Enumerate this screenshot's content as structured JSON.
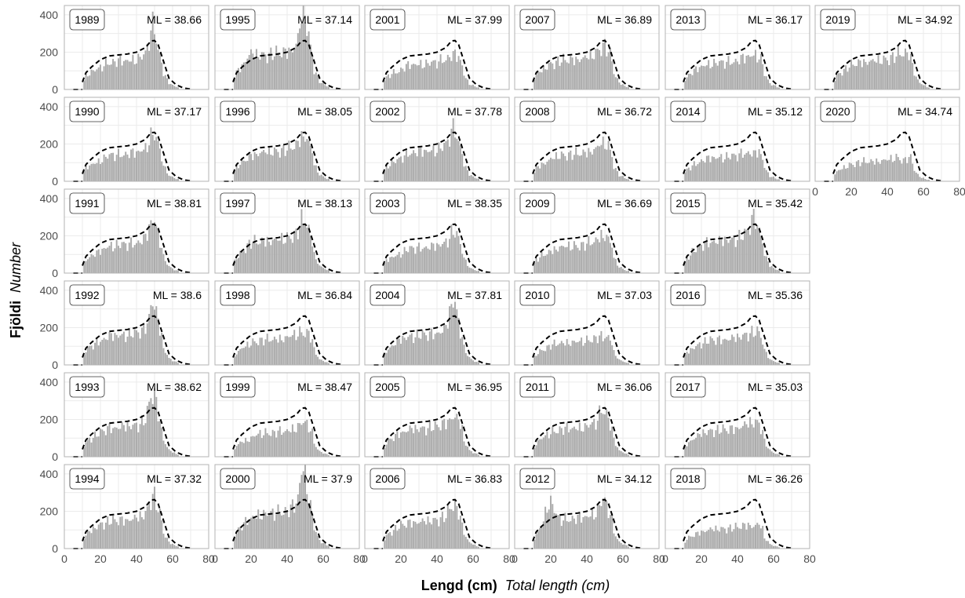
{
  "chart_data": {
    "type": "bar",
    "facet_layout": "6x6 grid, columns filled top-to-bottom",
    "xlabel_bold": "Lengd (cm)",
    "xlabel_italic": "Total length (cm)",
    "ylabel_bold": "Fjöldi",
    "ylabel_italic": "Number",
    "xlim": [
      0,
      80
    ],
    "ylim": [
      0,
      450
    ],
    "x_ticks": [
      0,
      20,
      40,
      60,
      80
    ],
    "y_ticks": [
      0,
      200,
      400
    ],
    "grid": true,
    "colors": {
      "bars": "#aaaaaa",
      "reference": "#000000",
      "grid": "#ebebeb"
    },
    "reference_curve": {
      "style": "dashed",
      "points": [
        [
          10,
          40
        ],
        [
          12,
          90
        ],
        [
          15,
          120
        ],
        [
          20,
          160
        ],
        [
          25,
          180
        ],
        [
          30,
          185
        ],
        [
          35,
          190
        ],
        [
          40,
          200
        ],
        [
          45,
          225
        ],
        [
          48,
          260
        ],
        [
          50,
          262
        ],
        [
          52,
          240
        ],
        [
          55,
          150
        ],
        [
          58,
          60
        ],
        [
          62,
          25
        ],
        [
          66,
          8
        ],
        [
          70,
          2
        ]
      ]
    },
    "panels": [
      {
        "year": "1989",
        "ml_label": "ML = 38.66",
        "shape": {
          "scale": 1.0,
          "peak": 1.6,
          "left": 0.9,
          "right": 1.0
        },
        "show_x_axis": false
      },
      {
        "year": "1990",
        "ml_label": "ML = 37.17",
        "shape": {
          "scale": 0.95,
          "peak": 1.25,
          "left": 0.9,
          "right": 1.0
        },
        "show_x_axis": false
      },
      {
        "year": "1991",
        "ml_label": "ML = 38.81",
        "shape": {
          "scale": 1.0,
          "peak": 1.35,
          "left": 0.9,
          "right": 1.0
        },
        "show_x_axis": false
      },
      {
        "year": "1992",
        "ml_label": "ML = 38.6",
        "shape": {
          "scale": 1.05,
          "peak": 1.5,
          "left": 0.95,
          "right": 1.0
        },
        "show_x_axis": false
      },
      {
        "year": "1993",
        "ml_label": "ML = 38.62",
        "shape": {
          "scale": 1.05,
          "peak": 1.55,
          "left": 0.95,
          "right": 1.0
        },
        "show_x_axis": false
      },
      {
        "year": "1994",
        "ml_label": "ML = 37.32",
        "shape": {
          "scale": 1.0,
          "peak": 1.35,
          "left": 1.0,
          "right": 1.0
        },
        "show_x_axis": true
      },
      {
        "year": "1995",
        "ml_label": "ML = 37.14",
        "shape": {
          "scale": 1.25,
          "peak": 1.55,
          "left": 1.2,
          "right": 1.0
        },
        "show_x_axis": false
      },
      {
        "year": "1996",
        "ml_label": "ML = 38.05",
        "shape": {
          "scale": 1.05,
          "peak": 1.1,
          "left": 1.0,
          "right": 1.0
        },
        "show_x_axis": false
      },
      {
        "year": "1997",
        "ml_label": "ML = 38.13",
        "shape": {
          "scale": 1.15,
          "peak": 1.15,
          "left": 1.1,
          "right": 1.0
        },
        "show_x_axis": false
      },
      {
        "year": "1998",
        "ml_label": "ML = 36.84",
        "shape": {
          "scale": 0.9,
          "peak": 0.9,
          "left": 1.0,
          "right": 1.0
        },
        "show_x_axis": false
      },
      {
        "year": "1999",
        "ml_label": "ML = 38.47",
        "shape": {
          "scale": 0.85,
          "peak": 1.0,
          "left": 0.9,
          "right": 1.0
        },
        "show_x_axis": false
      },
      {
        "year": "2000",
        "ml_label": "ML = 37.9",
        "shape": {
          "scale": 1.25,
          "peak": 1.65,
          "left": 1.0,
          "right": 1.0
        },
        "show_x_axis": true
      },
      {
        "year": "2001",
        "ml_label": "ML = 37.99",
        "shape": {
          "scale": 0.9,
          "peak": 0.95,
          "left": 0.9,
          "right": 1.0
        },
        "show_x_axis": false
      },
      {
        "year": "2002",
        "ml_label": "ML = 37.78",
        "shape": {
          "scale": 1.05,
          "peak": 1.25,
          "left": 0.9,
          "right": 1.0
        },
        "show_x_axis": false
      },
      {
        "year": "2003",
        "ml_label": "ML = 38.35",
        "shape": {
          "scale": 0.9,
          "peak": 1.15,
          "left": 0.9,
          "right": 1.0
        },
        "show_x_axis": false
      },
      {
        "year": "2004",
        "ml_label": "ML = 37.81",
        "shape": {
          "scale": 1.05,
          "peak": 1.55,
          "left": 1.0,
          "right": 1.0
        },
        "show_x_axis": false
      },
      {
        "year": "2005",
        "ml_label": "ML = 36.95",
        "shape": {
          "scale": 1.0,
          "peak": 1.0,
          "left": 1.0,
          "right": 1.0
        },
        "show_x_axis": false
      },
      {
        "year": "2006",
        "ml_label": "ML = 36.83",
        "shape": {
          "scale": 0.95,
          "peak": 1.15,
          "left": 1.0,
          "right": 1.0
        },
        "show_x_axis": true
      },
      {
        "year": "2007",
        "ml_label": "ML = 36.89",
        "shape": {
          "scale": 1.05,
          "peak": 1.05,
          "left": 1.0,
          "right": 1.0
        },
        "show_x_axis": false
      },
      {
        "year": "2008",
        "ml_label": "ML = 36.72",
        "shape": {
          "scale": 0.95,
          "peak": 1.0,
          "left": 0.95,
          "right": 1.0
        },
        "show_x_axis": false
      },
      {
        "year": "2009",
        "ml_label": "ML = 36.69",
        "shape": {
          "scale": 0.95,
          "peak": 1.0,
          "left": 0.95,
          "right": 1.0
        },
        "show_x_axis": false
      },
      {
        "year": "2010",
        "ml_label": "ML = 37.03",
        "shape": {
          "scale": 0.8,
          "peak": 0.85,
          "left": 1.0,
          "right": 1.0
        },
        "show_x_axis": false
      },
      {
        "year": "2011",
        "ml_label": "ML = 36.06",
        "shape": {
          "scale": 1.0,
          "peak": 1.2,
          "left": 1.0,
          "right": 1.0
        },
        "show_x_axis": false
      },
      {
        "year": "2012",
        "ml_label": "ML = 34.12",
        "shape": {
          "scale": 1.05,
          "peak": 1.15,
          "left": 1.9,
          "right": 1.0
        },
        "show_x_axis": true
      },
      {
        "year": "2013",
        "ml_label": "ML = 36.17",
        "shape": {
          "scale": 0.95,
          "peak": 0.9,
          "left": 1.0,
          "right": 1.0
        },
        "show_x_axis": false
      },
      {
        "year": "2014",
        "ml_label": "ML = 35.12",
        "shape": {
          "scale": 0.85,
          "peak": 0.8,
          "left": 1.0,
          "right": 1.0
        },
        "show_x_axis": false
      },
      {
        "year": "2015",
        "ml_label": "ML = 35.42",
        "shape": {
          "scale": 1.15,
          "peak": 1.2,
          "left": 1.0,
          "right": 1.0
        },
        "show_x_axis": false
      },
      {
        "year": "2016",
        "ml_label": "ML = 35.36",
        "shape": {
          "scale": 0.9,
          "peak": 0.9,
          "left": 1.0,
          "right": 1.0
        },
        "show_x_axis": false
      },
      {
        "year": "2017",
        "ml_label": "ML = 35.03",
        "shape": {
          "scale": 0.95,
          "peak": 0.9,
          "left": 1.0,
          "right": 1.0
        },
        "show_x_axis": false
      },
      {
        "year": "2018",
        "ml_label": "ML = 36.26",
        "shape": {
          "scale": 0.7,
          "peak": 0.8,
          "left": 1.0,
          "right": 1.0
        },
        "show_x_axis": true
      },
      {
        "year": "2019",
        "ml_label": "ML = 34.92",
        "shape": {
          "scale": 1.0,
          "peak": 0.9,
          "left": 1.0,
          "right": 1.0
        },
        "show_x_axis": false
      },
      {
        "year": "2020",
        "ml_label": "ML = 34.74",
        "shape": {
          "scale": 0.7,
          "peak": 0.75,
          "left": 1.0,
          "right": 1.0
        },
        "show_x_axis": true
      }
    ]
  }
}
